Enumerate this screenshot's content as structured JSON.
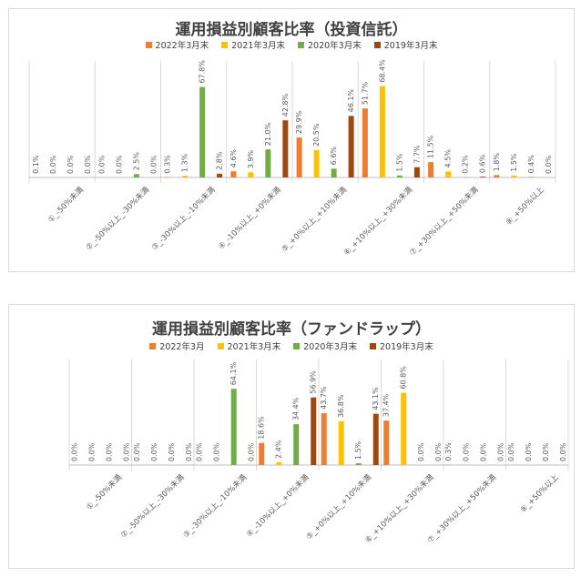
{
  "chart_data": [
    {
      "type": "bar",
      "title": "運用損益別顧客比率（投資信託）",
      "ylim": [
        0,
        75
      ],
      "categories": [
        "①_-50%未満",
        "②_-50%以上_-30%未満",
        "③_-30%以上_-10%未満",
        "④_-10%以上_+0%未満",
        "⑤_+0%以上_+10%未満",
        "⑥_+10%以上_+30%未満",
        "⑦_+30%以上_+50%未満",
        "⑧_+50%以上"
      ],
      "series": [
        {
          "name": "2022年3月末",
          "color": "#ED7D31",
          "values": [
            0.1,
            0.0,
            0.3,
            4.6,
            29.9,
            51.7,
            11.5,
            1.8
          ],
          "labels": [
            "0.1%",
            "0.0%",
            "0.3%",
            "4.6%",
            "29.9%",
            "51.7%",
            "11.5%",
            "1.8%"
          ]
        },
        {
          "name": "2021年3月末",
          "color": "#FFC000",
          "values": [
            0.0,
            0.0,
            1.3,
            3.9,
            20.5,
            68.4,
            4.5,
            1.5
          ],
          "labels": [
            "0.0%",
            "0.0%",
            "1.3%",
            "3.9%",
            "20.5%",
            "68.4%",
            "4.5%",
            "1.5%"
          ]
        },
        {
          "name": "2020年3月末",
          "color": "#70AD47",
          "values": [
            0.0,
            2.5,
            67.8,
            21.0,
            6.6,
            1.5,
            0.2,
            0.4
          ],
          "labels": [
            "0.0%",
            "2.5%",
            "67.8%",
            "21.0%",
            "6.6%",
            "1.5%",
            "0.2%",
            "0.4%"
          ]
        },
        {
          "name": "2019年3月末",
          "color": "#9E480E",
          "values": [
            0.0,
            0.0,
            2.8,
            42.8,
            46.1,
            7.7,
            0.6,
            0.0
          ],
          "labels": [
            "0.0%",
            "0.0%",
            "2.8%",
            "42.8%",
            "46.1%",
            "7.7%",
            "0.6%",
            "0.0%"
          ]
        }
      ]
    },
    {
      "type": "bar",
      "title": "運用損益別顧客比率（ファンドラップ）",
      "ylim": [
        0,
        75
      ],
      "categories": [
        "①_-50%未満",
        "②_-50%以上_-30%未満",
        "③_-30%以上_-10%未満",
        "④_-10%以上_+0%未満",
        "⑤_+0%以上_+10%未満",
        "⑥_+10%以上_+30%未満",
        "⑦_+30%以上_+50%未満",
        "⑧_+50%以上"
      ],
      "series": [
        {
          "name": "2022年3月",
          "color": "#ED7D31",
          "values": [
            0.0,
            0.0,
            0.0,
            18.6,
            43.7,
            37.4,
            0.3,
            0.0
          ],
          "labels": [
            "0.0%",
            "0.0%",
            "0.0%",
            "18.6%",
            "43.7%",
            "37.4%",
            "0.3%",
            "0.0%"
          ]
        },
        {
          "name": "2021年3月末",
          "color": "#FFC000",
          "values": [
            0.0,
            0.0,
            0.0,
            2.4,
            36.8,
            60.8,
            0.0,
            0.0
          ],
          "labels": [
            "0.0%",
            "0.0%",
            "0.0%",
            "2.4%",
            "36.8%",
            "60.8%",
            "0.0%",
            "0.0%"
          ]
        },
        {
          "name": "2020年3月末",
          "color": "#70AD47",
          "values": [
            0.0,
            0.0,
            64.1,
            34.4,
            1.5,
            0.0,
            0.0,
            0.0
          ],
          "labels": [
            "0.0%",
            "0.0%",
            "64.1%",
            "34.4%",
            "1.5%",
            "0.0%",
            "0.0%",
            "0.0%"
          ]
        },
        {
          "name": "2019年3月末",
          "color": "#9E480E",
          "values": [
            0.0,
            0.0,
            0.0,
            56.9,
            43.1,
            0.0,
            0.0,
            0.0
          ],
          "labels": [
            "0.0%",
            "0.0%",
            "0.0%",
            "56.9%",
            "43.1%",
            "0.0%",
            "0.0%",
            "0.0%"
          ]
        }
      ]
    }
  ]
}
